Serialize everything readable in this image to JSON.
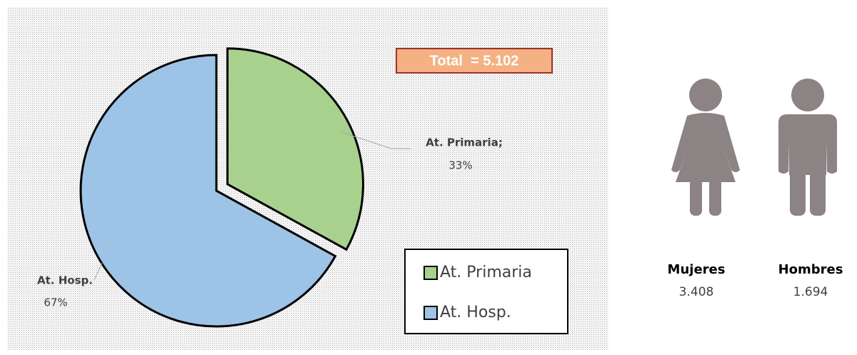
{
  "chart_data": {
    "type": "pie",
    "categories": [
      "At. Primaria",
      "At. Hosp."
    ],
    "slice_labels": [
      "At. Primaria;",
      "At. Hosp."
    ],
    "values": [
      33,
      67
    ],
    "value_labels": [
      "33%",
      "67%"
    ],
    "colors": [
      "#a9d18e",
      "#9dc3e6"
    ],
    "annotation": "Total  = 5.102"
  },
  "people": [
    {
      "name": "Mujeres",
      "value": "3.408"
    },
    {
      "name": "Hombres",
      "value": "1.694"
    }
  ]
}
